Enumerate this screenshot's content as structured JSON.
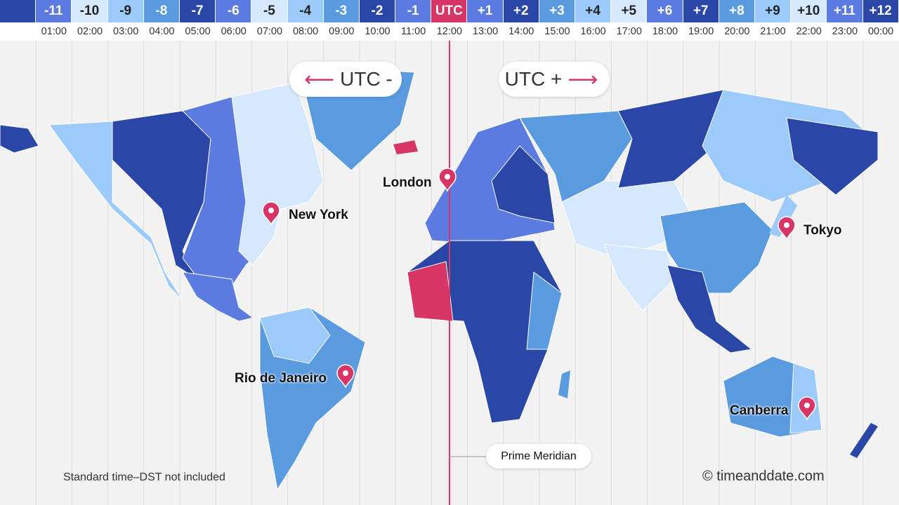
{
  "zones": [
    {
      "label": "",
      "time": "",
      "color": "#2a47a8"
    },
    {
      "label": "-11",
      "time": "01:00",
      "color": "#5b7be0"
    },
    {
      "label": "-10",
      "time": "02:00",
      "color": "#d6e8fd"
    },
    {
      "label": "-9",
      "time": "03:00",
      "color": "#9ccbfb"
    },
    {
      "label": "-8",
      "time": "04:00",
      "color": "#5a9be0"
    },
    {
      "label": "-7",
      "time": "05:00",
      "color": "#2a47a8"
    },
    {
      "label": "-6",
      "time": "06:00",
      "color": "#5b7be0"
    },
    {
      "label": "-5",
      "time": "07:00",
      "color": "#d6e8fd"
    },
    {
      "label": "-4",
      "time": "08:00",
      "color": "#9ccbfb"
    },
    {
      "label": "-3",
      "time": "09:00",
      "color": "#5a9be0"
    },
    {
      "label": "-2",
      "time": "10:00",
      "color": "#2a47a8"
    },
    {
      "label": "-1",
      "time": "11:00",
      "color": "#5b7be0"
    },
    {
      "label": "UTC",
      "time": "12:00",
      "color": "#d63565"
    },
    {
      "label": "+1",
      "time": "13:00",
      "color": "#5b7be0"
    },
    {
      "label": "+2",
      "time": "14:00",
      "color": "#2a47a8"
    },
    {
      "label": "+3",
      "time": "15:00",
      "color": "#5a9be0"
    },
    {
      "label": "+4",
      "time": "16:00",
      "color": "#9ccbfb"
    },
    {
      "label": "+5",
      "time": "17:00",
      "color": "#d6e8fd"
    },
    {
      "label": "+6",
      "time": "18:00",
      "color": "#5b7be0"
    },
    {
      "label": "+7",
      "time": "19:00",
      "color": "#2a47a8"
    },
    {
      "label": "+8",
      "time": "20:00",
      "color": "#5a9be0"
    },
    {
      "label": "+9",
      "time": "21:00",
      "color": "#9ccbfb"
    },
    {
      "label": "+10",
      "time": "22:00",
      "color": "#d6e8fd"
    },
    {
      "label": "+11",
      "time": "23:00",
      "color": "#5b7be0"
    },
    {
      "label": "+12",
      "time": "00:00",
      "color": "#2a47a8"
    }
  ],
  "labels": {
    "utc_minus": "UTC -",
    "utc_plus": "UTC +",
    "prime_meridian": "Prime Meridian",
    "footnote": "Standard time–DST not included",
    "copyright": "© timeanddate.com"
  },
  "cities": [
    "London",
    "New York",
    "Tokyo",
    "Rio de Janeiro",
    "Canberra"
  ],
  "accent": "#d63565"
}
